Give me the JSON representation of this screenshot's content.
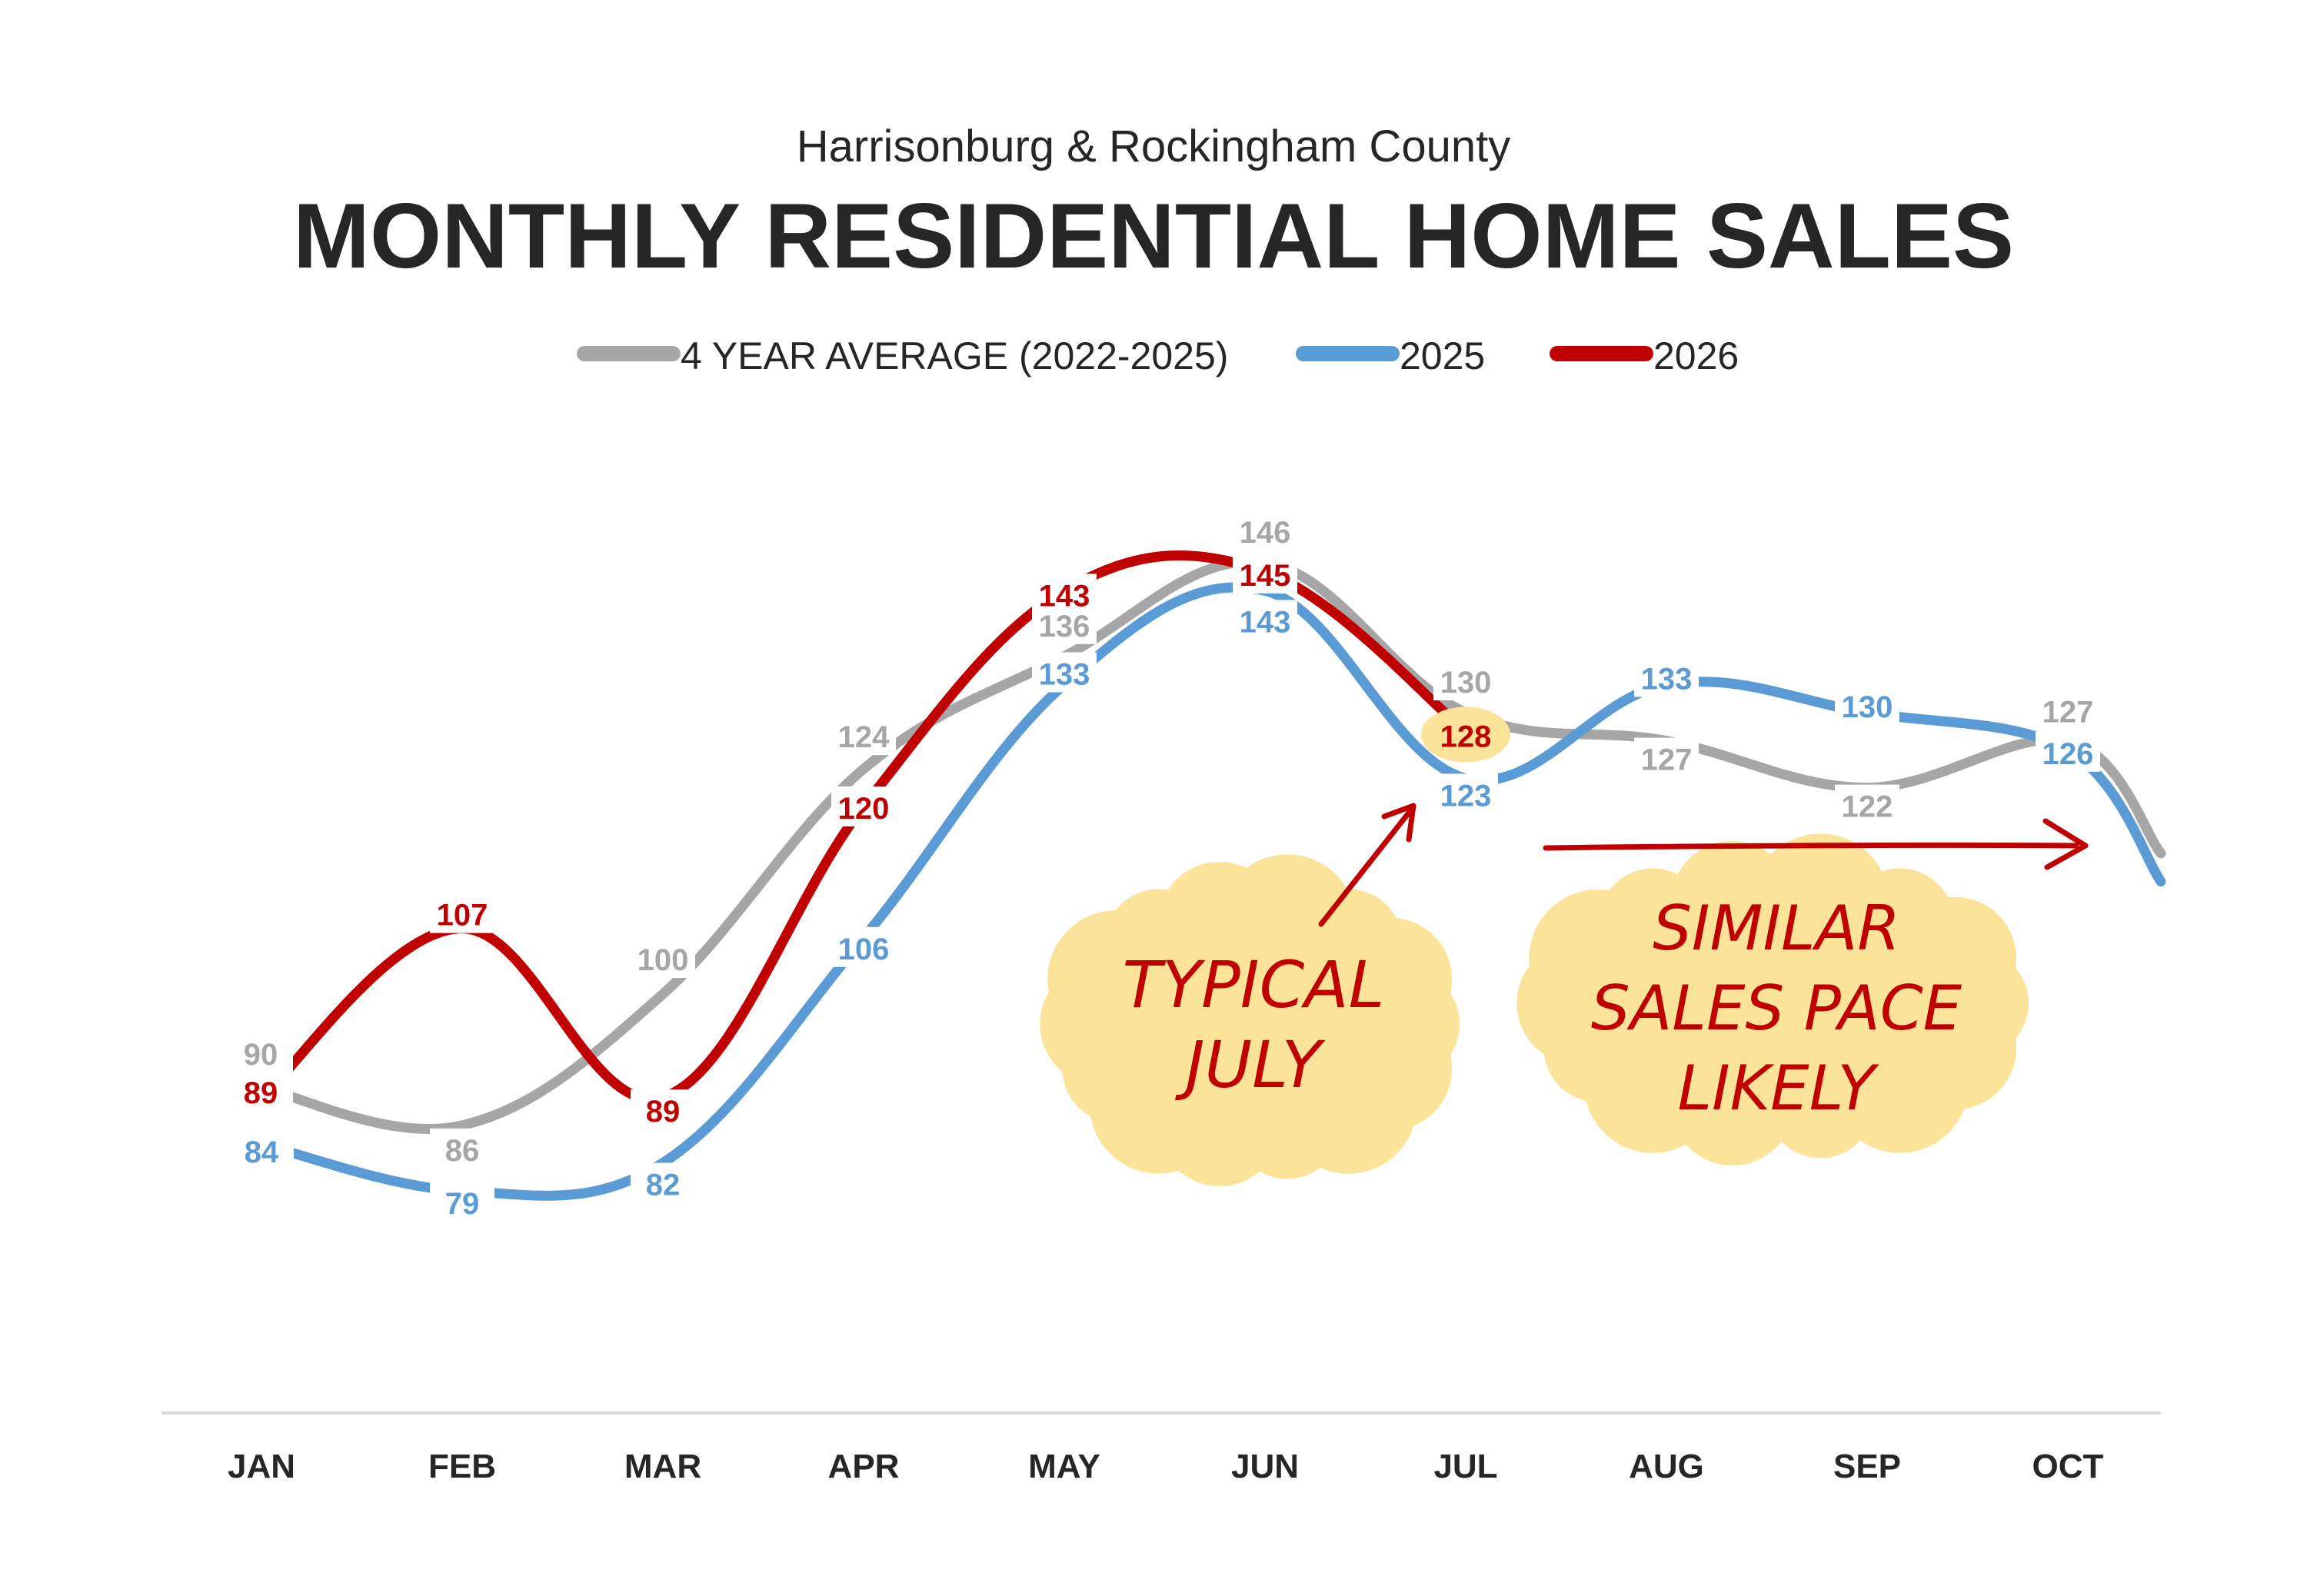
{
  "chart_data": {
    "type": "line",
    "subtitle": "Harrisonburg & Rockingham County",
    "title": "MONTHLY RESIDENTIAL HOME SALES",
    "xlabel": "",
    "ylabel": "",
    "ylim": [
      60,
      160
    ],
    "grid": false,
    "legend_position": "top-center",
    "categories": [
      "JAN",
      "FEB",
      "MAR",
      "APR",
      "MAY",
      "JUN",
      "JUL",
      "AUG",
      "SEP",
      "OCT"
    ],
    "series": [
      {
        "name": "4 YEAR AVERAGE (2022-2025)",
        "color": "#a6a6a6",
        "values": [
          90,
          86,
          100,
          124,
          136,
          146,
          130,
          127,
          122,
          127
        ],
        "continues_past_last": true
      },
      {
        "name": "2025",
        "color": "#5b9bd5",
        "values": [
          84,
          79,
          82,
          106,
          133,
          143,
          123,
          133,
          130,
          126
        ],
        "continues_past_last": true
      },
      {
        "name": "2026",
        "color": "#c00000",
        "values": [
          89,
          107,
          89,
          120,
          143,
          145,
          128,
          null,
          null,
          null
        ],
        "highlight_index": 6
      }
    ],
    "annotations": [
      {
        "lines": [
          "TYPICAL",
          "JULY"
        ],
        "color": "#c00000",
        "highlight": "#fbe49a",
        "points_to": "JUL"
      },
      {
        "lines": [
          "SIMILAR",
          "SALES PACE",
          "LIKELY"
        ],
        "color": "#c00000",
        "highlight": "#fbe49a",
        "arrow": "right"
      }
    ]
  }
}
